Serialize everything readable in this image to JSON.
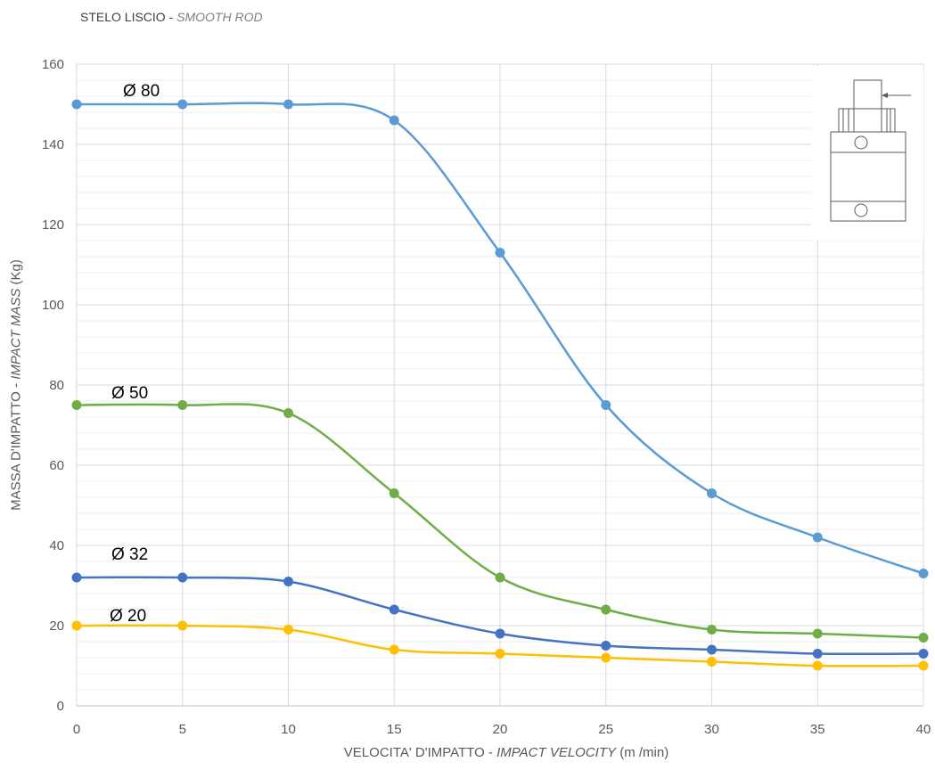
{
  "chart_data": {
    "type": "line",
    "title": {
      "text": "STELO LISCIO - ",
      "italic": "SMOOTH ROD"
    },
    "xlabel": {
      "text": "VELOCITA' D'IMPATTO - ",
      "italic": "IMPACT VELOCITY",
      "unit": " (m /min)"
    },
    "ylabel": {
      "text": "MASSA D'IMPATTO - ",
      "italic": "IMPACT MASS",
      "unit": " (Kg)"
    },
    "x": [
      0,
      5,
      10,
      15,
      20,
      25,
      30,
      35,
      40
    ],
    "xlim": [
      0,
      40
    ],
    "ylim": [
      0,
      160
    ],
    "xticks": [
      0,
      5,
      10,
      15,
      20,
      25,
      30,
      35,
      40
    ],
    "yticks": [
      0,
      20,
      40,
      60,
      80,
      100,
      120,
      140,
      160
    ],
    "grid": true,
    "smooth": true,
    "markers": "circle",
    "legend": "none",
    "series": [
      {
        "name": "Ø 80",
        "color": "#5B9BD5",
        "values": [
          150,
          150,
          150,
          146,
          113,
          75,
          53,
          42,
          33
        ]
      },
      {
        "name": "Ø 50",
        "color": "#70AD47",
        "values": [
          75,
          75,
          73,
          53,
          32,
          24,
          19,
          18,
          17
        ]
      },
      {
        "name": "Ø 32",
        "color": "#4472C4",
        "values": [
          32,
          32,
          31,
          24,
          18,
          15,
          14,
          13,
          13
        ]
      },
      {
        "name": "Ø 20",
        "color": "#FFC000",
        "values": [
          20,
          20,
          19,
          14,
          13,
          12,
          11,
          10,
          10
        ]
      }
    ]
  },
  "inset": {
    "icon": "cylinder-smooth-rod-icon"
  }
}
